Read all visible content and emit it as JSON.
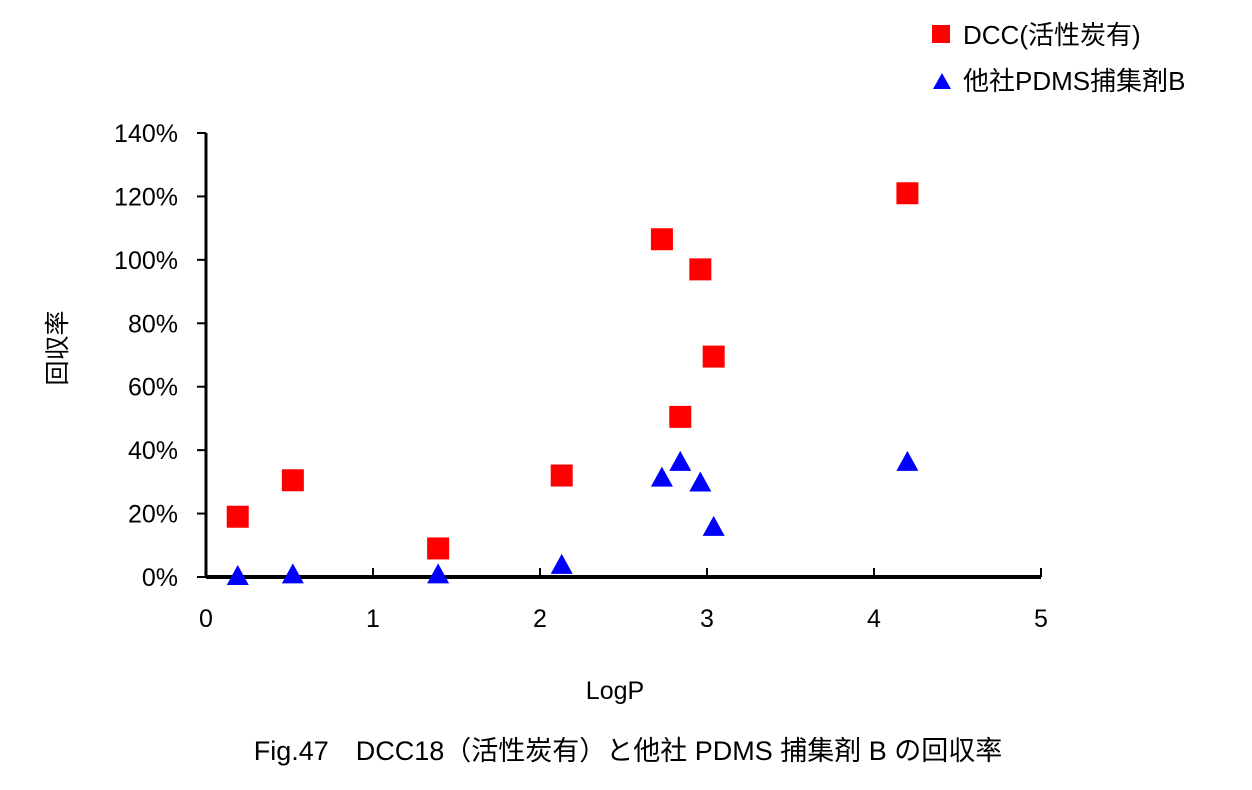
{
  "chart_data": {
    "type": "scatter",
    "caption": "Fig.47　DCC18（活性炭有）と他社 PDMS 捕集剤 B の回収率",
    "xlabel": "LogP",
    "ylabel": "回収率",
    "xlim": [
      0,
      5
    ],
    "ylim": [
      0,
      1.4
    ],
    "x_ticks": [
      0,
      1,
      2,
      3,
      4,
      5
    ],
    "y_ticks": [
      0,
      0.2,
      0.4,
      0.6,
      0.8,
      1.0,
      1.2,
      1.4
    ],
    "y_tick_labels": [
      "0%",
      "20%",
      "40%",
      "60%",
      "80%",
      "100%",
      "120%",
      "140%"
    ],
    "grid": false,
    "legend_position": "top-right",
    "series": [
      {
        "name": "DCC(活性炭有)",
        "marker": "square",
        "color": "#ff0000",
        "points": [
          {
            "x": 0.19,
            "y": 0.19
          },
          {
            "x": 0.52,
            "y": 0.305
          },
          {
            "x": 1.39,
            "y": 0.09
          },
          {
            "x": 2.13,
            "y": 0.32
          },
          {
            "x": 2.73,
            "y": 1.065
          },
          {
            "x": 2.84,
            "y": 0.505
          },
          {
            "x": 2.96,
            "y": 0.97
          },
          {
            "x": 3.04,
            "y": 0.695
          },
          {
            "x": 4.2,
            "y": 1.21
          }
        ]
      },
      {
        "name": "他社PDMS捕集剤B",
        "marker": "triangle",
        "color": "#0000ff",
        "points": [
          {
            "x": 0.19,
            "y": 0.0
          },
          {
            "x": 0.52,
            "y": 0.005
          },
          {
            "x": 1.39,
            "y": 0.005
          },
          {
            "x": 2.13,
            "y": 0.035
          },
          {
            "x": 2.73,
            "y": 0.31
          },
          {
            "x": 2.84,
            "y": 0.36
          },
          {
            "x": 2.96,
            "y": 0.295
          },
          {
            "x": 3.04,
            "y": 0.155
          },
          {
            "x": 4.2,
            "y": 0.36
          }
        ]
      }
    ]
  }
}
